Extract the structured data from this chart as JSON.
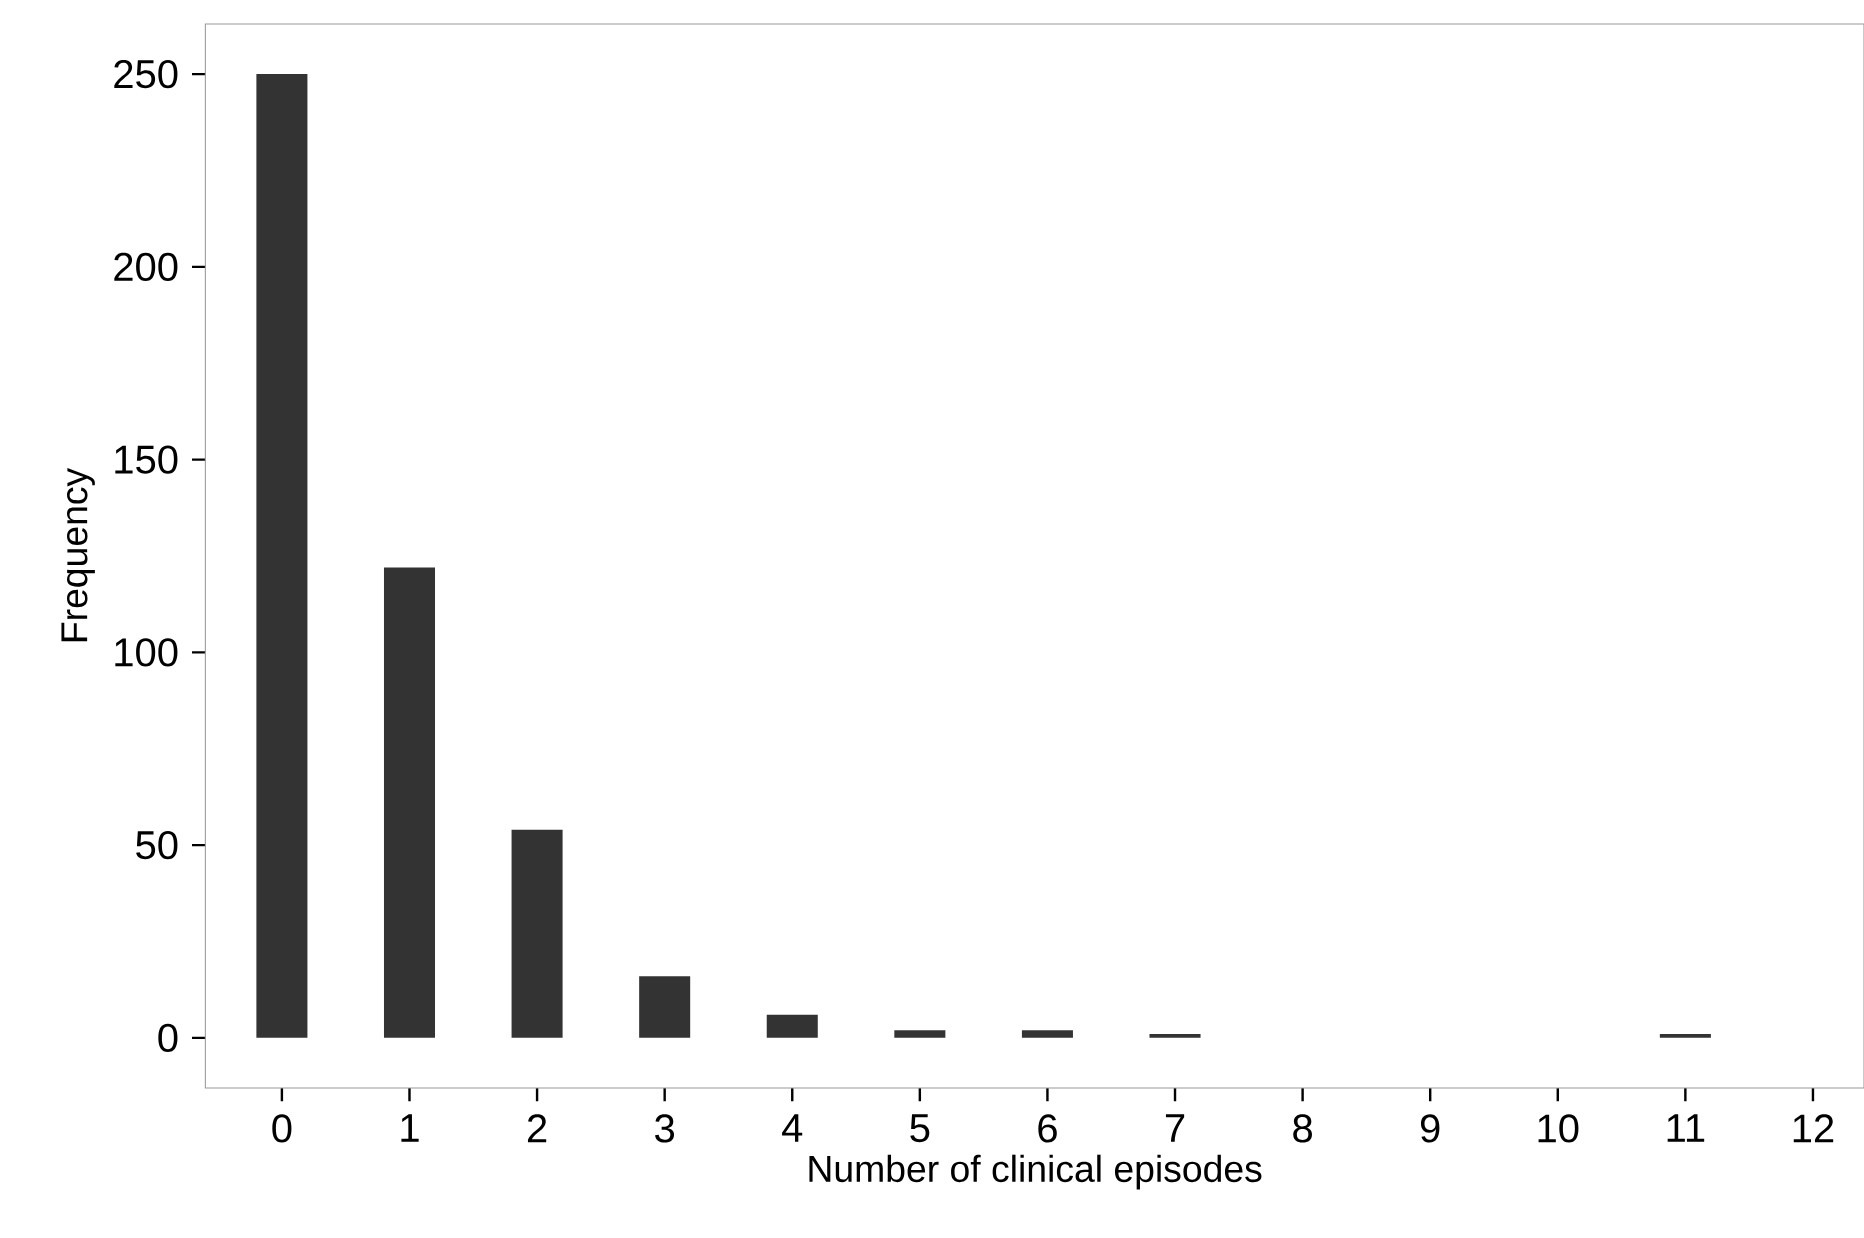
{
  "chart_data": {
    "type": "bar",
    "xlabel": "Number of clinical episodes",
    "ylabel": "Frequency",
    "x": [
      0,
      1,
      2,
      3,
      4,
      5,
      6,
      7,
      8,
      9,
      10,
      11,
      12
    ],
    "values": [
      250,
      122,
      54,
      16,
      6,
      2,
      2,
      1,
      0,
      0,
      0,
      1,
      0
    ],
    "color": "#333333",
    "xlim": [
      -0.6,
      12.4
    ],
    "ylim": [
      -13,
      263
    ],
    "xticks": [
      0,
      1,
      2,
      3,
      4,
      5,
      6,
      7,
      8,
      9,
      10,
      11,
      12
    ],
    "yticks": [
      0,
      50,
      100,
      150,
      200,
      250
    ]
  }
}
